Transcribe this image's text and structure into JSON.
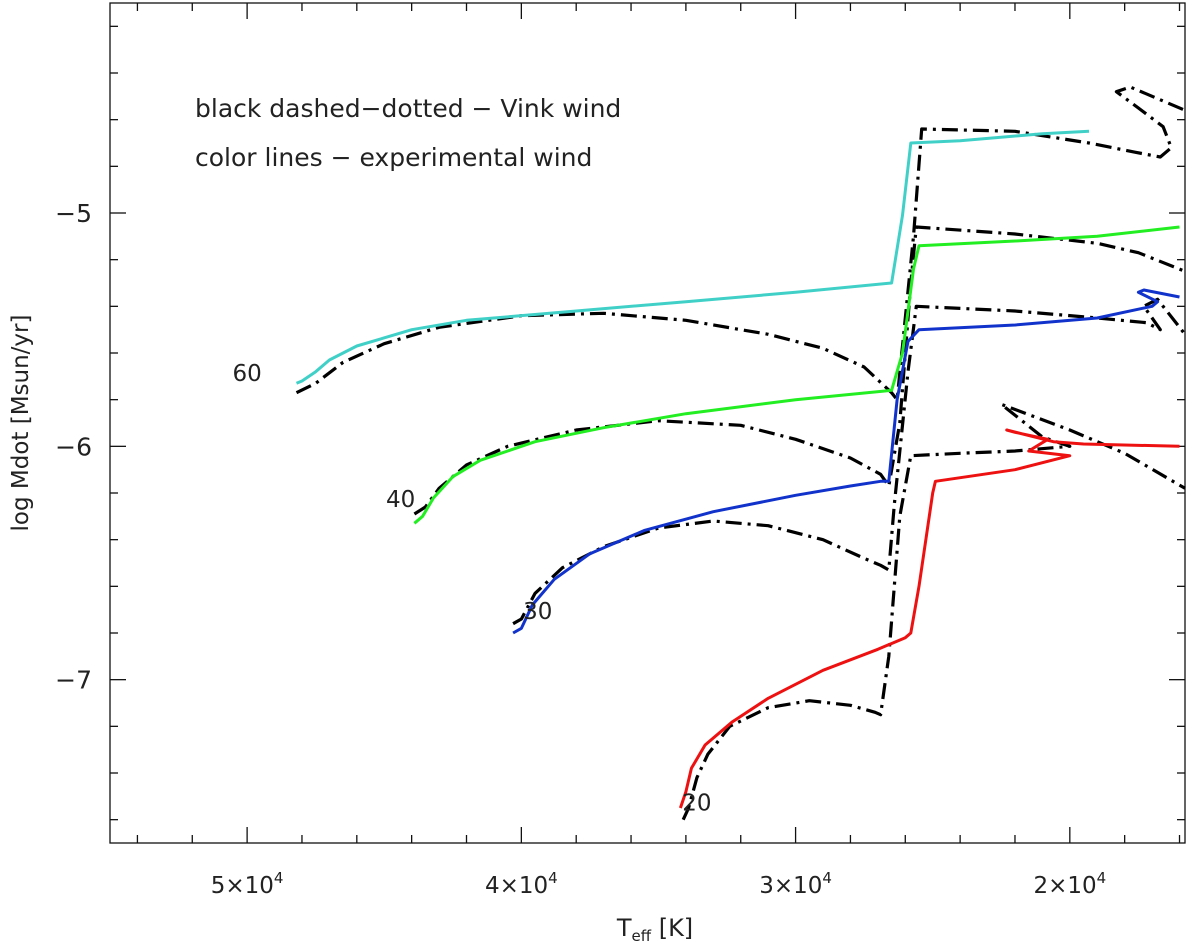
{
  "chart_data": {
    "type": "line",
    "ylabel": "log Mdot [Msun/yr]",
    "xlabel_main": "T",
    "xlabel_sub": "eff",
    "xlabel_unit": "[K]",
    "x_axis_reversed": true,
    "xlim": [
      55000,
      15800
    ],
    "ylim": [
      -7.7,
      -4.1
    ],
    "x_ticks": [
      {
        "value": 50000,
        "mant": "5×10",
        "exp": "4"
      },
      {
        "value": 40000,
        "mant": "4×10",
        "exp": "4"
      },
      {
        "value": 30000,
        "mant": "3×10",
        "exp": "4"
      },
      {
        "value": 20000,
        "mant": "2×10",
        "exp": "4"
      }
    ],
    "y_ticks": [
      {
        "value": -5,
        "label": "−5"
      },
      {
        "value": -6,
        "label": "−6"
      },
      {
        "value": -7,
        "label": "−7"
      }
    ],
    "x_minor_step": 2000,
    "y_minor_step": 0.2,
    "annotations": [
      {
        "text": "black dashed−dotted − Vink wind"
      },
      {
        "text": "color lines − experimental wind"
      }
    ],
    "mass_labels": [
      {
        "text": "60",
        "x": 50000,
        "y": -5.72
      },
      {
        "text": "40",
        "x": 44400,
        "y": -6.26
      },
      {
        "text": "30",
        "x": 39400,
        "y": -6.74
      },
      {
        "text": "20",
        "x": 33600,
        "y": -7.56
      }
    ],
    "series": [
      {
        "style": "experimental",
        "color": "#40d0c8",
        "points": [
          [
            48200,
            -5.73
          ],
          [
            48000,
            -5.72
          ],
          [
            47500,
            -5.68
          ],
          [
            47000,
            -5.63
          ],
          [
            46000,
            -5.57
          ],
          [
            44000,
            -5.5
          ],
          [
            42000,
            -5.46
          ],
          [
            38000,
            -5.42
          ],
          [
            34000,
            -5.38
          ],
          [
            30000,
            -5.34
          ],
          [
            26500,
            -5.3
          ],
          [
            26100,
            -5.01
          ],
          [
            25800,
            -4.7
          ],
          [
            24000,
            -4.69
          ],
          [
            21000,
            -4.66
          ],
          [
            19300,
            -4.65
          ]
        ]
      },
      {
        "style": "experimental",
        "color": "#22ee22",
        "points": [
          [
            43900,
            -6.33
          ],
          [
            43600,
            -6.3
          ],
          [
            43200,
            -6.22
          ],
          [
            42500,
            -6.13
          ],
          [
            41500,
            -6.06
          ],
          [
            39500,
            -5.98
          ],
          [
            37000,
            -5.92
          ],
          [
            34000,
            -5.86
          ],
          [
            30000,
            -5.8
          ],
          [
            26500,
            -5.76
          ],
          [
            26100,
            -5.6
          ],
          [
            25700,
            -5.24
          ],
          [
            25500,
            -5.14
          ],
          [
            22000,
            -5.12
          ],
          [
            19000,
            -5.1
          ],
          [
            16000,
            -5.06
          ]
        ]
      },
      {
        "style": "experimental",
        "color": "#1133cc",
        "points": [
          [
            40300,
            -6.8
          ],
          [
            40000,
            -6.78
          ],
          [
            39600,
            -6.68
          ],
          [
            38800,
            -6.57
          ],
          [
            37500,
            -6.46
          ],
          [
            35500,
            -6.36
          ],
          [
            33000,
            -6.28
          ],
          [
            30000,
            -6.21
          ],
          [
            28000,
            -6.17
          ],
          [
            26900,
            -6.15
          ],
          [
            26600,
            -6.15
          ],
          [
            26300,
            -5.8
          ],
          [
            25900,
            -5.55
          ],
          [
            25500,
            -5.5
          ],
          [
            22000,
            -5.48
          ],
          [
            19000,
            -5.45
          ],
          [
            17000,
            -5.4
          ],
          [
            16800,
            -5.38
          ],
          [
            17500,
            -5.34
          ],
          [
            17300,
            -5.33
          ],
          [
            16000,
            -5.36
          ]
        ]
      },
      {
        "style": "experimental",
        "color": "#ee1111",
        "points": [
          [
            34200,
            -7.55
          ],
          [
            34000,
            -7.48
          ],
          [
            33800,
            -7.38
          ],
          [
            33300,
            -7.28
          ],
          [
            32300,
            -7.18
          ],
          [
            31000,
            -7.08
          ],
          [
            29000,
            -6.96
          ],
          [
            27000,
            -6.87
          ],
          [
            26000,
            -6.82
          ],
          [
            25800,
            -6.8
          ],
          [
            25500,
            -6.6
          ],
          [
            25000,
            -6.2
          ],
          [
            24900,
            -6.15
          ],
          [
            22000,
            -6.1
          ],
          [
            20000,
            -6.04
          ],
          [
            21500,
            -6.02
          ],
          [
            20800,
            -5.97
          ],
          [
            22000,
            -5.94
          ],
          [
            22300,
            -5.93
          ],
          [
            20600,
            -5.98
          ],
          [
            19500,
            -5.99
          ],
          [
            16000,
            -6.0
          ]
        ]
      },
      {
        "style": "vink",
        "color": "#000000",
        "points": [
          [
            48200,
            -5.77
          ],
          [
            47500,
            -5.73
          ],
          [
            46500,
            -5.64
          ],
          [
            45000,
            -5.56
          ],
          [
            43000,
            -5.49
          ],
          [
            40000,
            -5.44
          ],
          [
            37000,
            -5.43
          ],
          [
            34000,
            -5.46
          ],
          [
            31000,
            -5.52
          ],
          [
            29000,
            -5.58
          ],
          [
            27500,
            -5.66
          ],
          [
            26500,
            -5.77
          ],
          [
            26300,
            -5.8
          ],
          [
            25700,
            -5.1
          ],
          [
            25400,
            -4.64
          ],
          [
            22000,
            -4.65
          ],
          [
            19300,
            -4.7
          ],
          [
            17600,
            -4.74
          ],
          [
            16700,
            -4.76
          ],
          [
            16300,
            -4.72
          ],
          [
            16600,
            -4.63
          ],
          [
            17500,
            -4.55
          ],
          [
            18300,
            -4.48
          ],
          [
            17800,
            -4.46
          ],
          [
            17000,
            -4.5
          ],
          [
            15800,
            -4.56
          ]
        ]
      },
      {
        "style": "vink",
        "color": "#000000",
        "points": [
          [
            43900,
            -6.29
          ],
          [
            43500,
            -6.26
          ],
          [
            43000,
            -6.18
          ],
          [
            42000,
            -6.08
          ],
          [
            40500,
            -6.0
          ],
          [
            38000,
            -5.93
          ],
          [
            35000,
            -5.89
          ],
          [
            32000,
            -5.91
          ],
          [
            30000,
            -5.97
          ],
          [
            28000,
            -6.05
          ],
          [
            26900,
            -6.12
          ],
          [
            26600,
            -6.17
          ],
          [
            26200,
            -5.9
          ],
          [
            25800,
            -5.3
          ],
          [
            25600,
            -5.06
          ],
          [
            22000,
            -5.09
          ],
          [
            19000,
            -5.13
          ],
          [
            17500,
            -5.17
          ],
          [
            15800,
            -5.25
          ]
        ]
      },
      {
        "style": "vink",
        "color": "#000000",
        "points": [
          [
            40300,
            -6.76
          ],
          [
            40000,
            -6.74
          ],
          [
            39500,
            -6.63
          ],
          [
            38500,
            -6.52
          ],
          [
            37000,
            -6.43
          ],
          [
            35000,
            -6.35
          ],
          [
            33000,
            -6.32
          ],
          [
            31000,
            -6.34
          ],
          [
            29000,
            -6.4
          ],
          [
            27500,
            -6.48
          ],
          [
            26900,
            -6.51
          ],
          [
            26600,
            -6.53
          ],
          [
            26400,
            -6.25
          ],
          [
            25900,
            -5.68
          ],
          [
            25600,
            -5.4
          ],
          [
            22000,
            -5.42
          ],
          [
            19000,
            -5.45
          ],
          [
            17200,
            -5.47
          ],
          [
            16700,
            -5.5
          ],
          [
            17300,
            -5.4
          ],
          [
            16800,
            -5.37
          ],
          [
            15800,
            -5.52
          ]
        ]
      },
      {
        "style": "vink",
        "color": "#000000",
        "points": [
          [
            34100,
            -7.6
          ],
          [
            33900,
            -7.55
          ],
          [
            33600,
            -7.42
          ],
          [
            33200,
            -7.32
          ],
          [
            32400,
            -7.2
          ],
          [
            31000,
            -7.12
          ],
          [
            29500,
            -7.09
          ],
          [
            28000,
            -7.11
          ],
          [
            27100,
            -7.14
          ],
          [
            26900,
            -7.15
          ],
          [
            26600,
            -6.9
          ],
          [
            26200,
            -6.3
          ],
          [
            25800,
            -6.04
          ],
          [
            24000,
            -6.03
          ],
          [
            22000,
            -6.02
          ],
          [
            20000,
            -6.0
          ],
          [
            21000,
            -5.96
          ],
          [
            22500,
            -5.82
          ],
          [
            20000,
            -5.93
          ],
          [
            18000,
            -6.03
          ],
          [
            15800,
            -6.18
          ]
        ]
      }
    ]
  }
}
